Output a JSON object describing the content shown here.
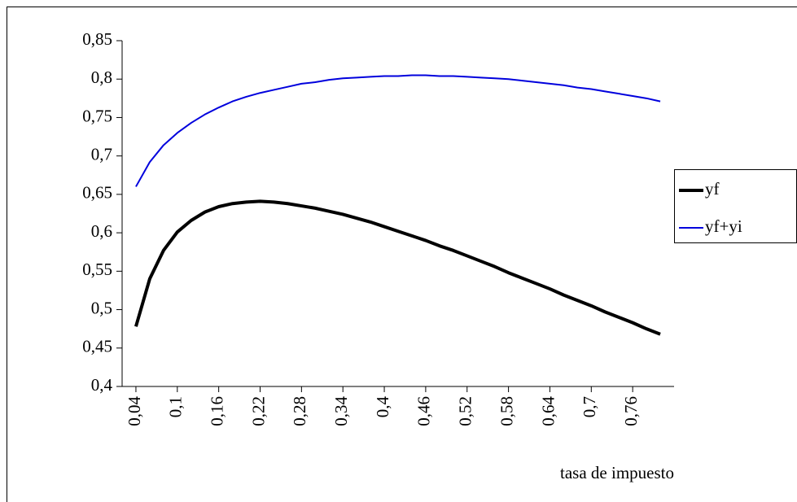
{
  "chart_data": {
    "type": "line",
    "x_label": "tasa de impuesto",
    "x": [
      0.04,
      0.06,
      0.08,
      0.1,
      0.12,
      0.14,
      0.16,
      0.18,
      0.2,
      0.22,
      0.24,
      0.26,
      0.28,
      0.3,
      0.32,
      0.34,
      0.36,
      0.38,
      0.4,
      0.42,
      0.44,
      0.46,
      0.48,
      0.5,
      0.52,
      0.54,
      0.56,
      0.58,
      0.6,
      0.62,
      0.64,
      0.66,
      0.68,
      0.7,
      0.72,
      0.74,
      0.76,
      0.78,
      0.8
    ],
    "series": [
      {
        "name": "yf",
        "color": "#000000",
        "width": 4,
        "values": [
          0.478,
          0.54,
          0.577,
          0.601,
          0.616,
          0.627,
          0.634,
          0.638,
          0.64,
          0.641,
          0.64,
          0.638,
          0.635,
          0.632,
          0.628,
          0.624,
          0.619,
          0.614,
          0.608,
          0.602,
          0.596,
          0.59,
          0.583,
          0.577,
          0.57,
          0.563,
          0.556,
          0.548,
          0.541,
          0.534,
          0.527,
          0.519,
          0.512,
          0.505,
          0.497,
          0.49,
          0.483,
          0.475,
          0.468
        ]
      },
      {
        "name": "yf+yi",
        "color": "#0000dd",
        "width": 2,
        "values": [
          0.66,
          0.692,
          0.714,
          0.73,
          0.743,
          0.754,
          0.763,
          0.771,
          0.777,
          0.782,
          0.786,
          0.79,
          0.794,
          0.796,
          0.799,
          0.801,
          0.802,
          0.803,
          0.804,
          0.804,
          0.805,
          0.805,
          0.804,
          0.804,
          0.803,
          0.802,
          0.801,
          0.8,
          0.798,
          0.796,
          0.794,
          0.792,
          0.789,
          0.787,
          0.784,
          0.781,
          0.778,
          0.775,
          0.771
        ]
      }
    ],
    "xlim": [
      0.02,
      0.82
    ],
    "xticks": [
      {
        "value": 0.04,
        "label": "0,04"
      },
      {
        "value": 0.1,
        "label": "0,1"
      },
      {
        "value": 0.16,
        "label": "0,16"
      },
      {
        "value": 0.22,
        "label": "0,22"
      },
      {
        "value": 0.28,
        "label": "0,28"
      },
      {
        "value": 0.34,
        "label": "0,34"
      },
      {
        "value": 0.4,
        "label": "0,4"
      },
      {
        "value": 0.46,
        "label": "0,46"
      },
      {
        "value": 0.52,
        "label": "0,52"
      },
      {
        "value": 0.58,
        "label": "0,58"
      },
      {
        "value": 0.64,
        "label": "0,64"
      },
      {
        "value": 0.7,
        "label": "0,7"
      },
      {
        "value": 0.76,
        "label": "0,76"
      }
    ],
    "ylim": [
      0.4,
      0.85
    ],
    "yticks": [
      {
        "value": 0.4,
        "label": "0,4"
      },
      {
        "value": 0.45,
        "label": "0,45"
      },
      {
        "value": 0.5,
        "label": "0,5"
      },
      {
        "value": 0.55,
        "label": "0,55"
      },
      {
        "value": 0.6,
        "label": "0,6"
      },
      {
        "value": 0.65,
        "label": "0,65"
      },
      {
        "value": 0.7,
        "label": "0,7"
      },
      {
        "value": 0.75,
        "label": "0,75"
      },
      {
        "value": 0.8,
        "label": "0,8"
      },
      {
        "value": 0.85,
        "label": "0,85"
      }
    ],
    "grid": false,
    "legend": "right"
  }
}
